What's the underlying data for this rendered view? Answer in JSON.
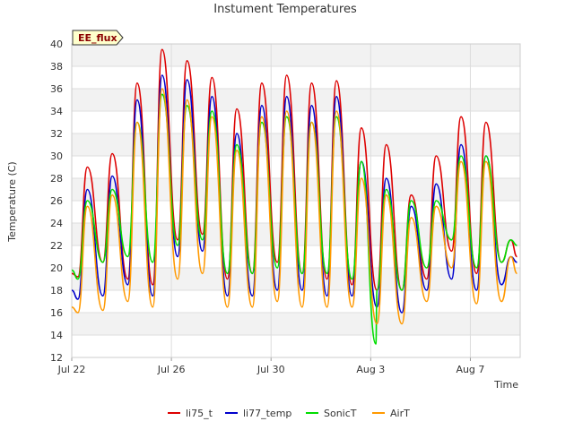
{
  "chart_data": {
    "type": "line",
    "title": "Instument Temperatures",
    "xlabel": "Time",
    "ylabel": "Temperature (C)",
    "badge": "EE_flux",
    "x_ticks": [
      {
        "day": 0,
        "label": "Jul 22"
      },
      {
        "day": 4,
        "label": "Jul 26"
      },
      {
        "day": 8,
        "label": "Jul 30"
      },
      {
        "day": 12,
        "label": "Aug 3"
      },
      {
        "day": 16,
        "label": "Aug 7"
      }
    ],
    "y_ticks": [
      12,
      14,
      16,
      18,
      20,
      22,
      24,
      26,
      28,
      30,
      32,
      34,
      36,
      38,
      40
    ],
    "xlim": [
      "Jul 22",
      "Aug 9"
    ],
    "ylim": [
      12,
      40
    ],
    "grid": true,
    "legend_position": "bottom",
    "series": [
      {
        "name": "li75_t",
        "color": "#dd0000",
        "x": [
          "Jul 22 00:00",
          "Jul 22 06:00",
          "Jul 22 15:00",
          "Jul 23 06:00",
          "Jul 23 15:00",
          "Jul 24 06:00",
          "Jul 24 15:00",
          "Jul 25 06:00",
          "Jul 25 15:00",
          "Jul 26 06:00",
          "Jul 26 15:00",
          "Jul 27 06:00",
          "Jul 27 15:00",
          "Jul 28 06:00",
          "Jul 28 15:00",
          "Jul 29 06:00",
          "Jul 29 15:00",
          "Jul 30 06:00",
          "Jul 30 15:00",
          "Jul 31 06:00",
          "Jul 31 15:00",
          "Aug 1 06:00",
          "Aug 1 15:00",
          "Aug 2 06:00",
          "Aug 2 15:00",
          "Aug 3 06:00",
          "Aug 3 15:00",
          "Aug 4 06:00",
          "Aug 4 15:00",
          "Aug 5 06:00",
          "Aug 5 15:00",
          "Aug 6 06:00",
          "Aug 6 15:00",
          "Aug 7 06:00",
          "Aug 7 15:00",
          "Aug 8 06:00",
          "Aug 8 15:00",
          "Aug 8 21:00"
        ],
        "values": [
          19.5,
          19.2,
          29,
          20.5,
          30.2,
          19,
          36.5,
          18.5,
          39.5,
          22.5,
          38.5,
          23,
          37,
          19,
          34.2,
          19.5,
          36.5,
          20.5,
          37.2,
          19.5,
          36.5,
          19,
          36.7,
          18.5,
          32.5,
          18,
          31,
          18,
          26.5,
          19,
          30,
          21.5,
          33.5,
          19.5,
          33,
          20.5,
          22.5,
          21
        ]
      },
      {
        "name": "li77_temp",
        "color": "#0000cc",
        "x": [
          "Jul 22 00:00",
          "Jul 22 06:00",
          "Jul 22 15:00",
          "Jul 23 06:00",
          "Jul 23 15:00",
          "Jul 24 06:00",
          "Jul 24 15:00",
          "Jul 25 06:00",
          "Jul 25 15:00",
          "Jul 26 06:00",
          "Jul 26 15:00",
          "Jul 27 06:00",
          "Jul 27 15:00",
          "Jul 28 06:00",
          "Jul 28 15:00",
          "Jul 29 06:00",
          "Jul 29 15:00",
          "Jul 30 06:00",
          "Jul 30 15:00",
          "Jul 31 06:00",
          "Jul 31 15:00",
          "Aug 1 06:00",
          "Aug 1 15:00",
          "Aug 2 06:00",
          "Aug 2 15:00",
          "Aug 3 06:00",
          "Aug 3 15:00",
          "Aug 4 06:00",
          "Aug 4 15:00",
          "Aug 5 06:00",
          "Aug 5 15:00",
          "Aug 6 06:00",
          "Aug 6 15:00",
          "Aug 7 06:00",
          "Aug 7 15:00",
          "Aug 8 06:00",
          "Aug 8 15:00",
          "Aug 8 21:00"
        ],
        "values": [
          18,
          17.2,
          27,
          17.5,
          28.2,
          18.5,
          35,
          17.5,
          37.2,
          21,
          36.8,
          21.5,
          35.3,
          17.5,
          32,
          17.5,
          34.5,
          18,
          35.3,
          18,
          34.5,
          17.5,
          35.3,
          17.5,
          29.5,
          16.5,
          28,
          16,
          25.5,
          18,
          27.5,
          19,
          31,
          18,
          30,
          18.5,
          21,
          20.5
        ]
      },
      {
        "name": "SonicT",
        "color": "#00dd00",
        "x": [
          "Jul 22 00:00",
          "Jul 22 06:00",
          "Jul 22 15:00",
          "Jul 23 06:00",
          "Jul 23 15:00",
          "Jul 24 06:00",
          "Jul 24 15:00",
          "Jul 25 06:00",
          "Jul 25 15:00",
          "Jul 26 06:00",
          "Jul 26 15:00",
          "Jul 27 06:00",
          "Jul 27 15:00",
          "Jul 28 06:00",
          "Jul 28 15:00",
          "Jul 29 06:00",
          "Jul 29 15:00",
          "Jul 30 06:00",
          "Jul 30 15:00",
          "Jul 31 06:00",
          "Jul 31 15:00",
          "Aug 1 06:00",
          "Aug 1 15:00",
          "Aug 2 06:00",
          "Aug 2 15:00",
          "Aug 3 05:00",
          "Aug 3 06:00",
          "Aug 3 15:00",
          "Aug 4 06:00",
          "Aug 4 15:00",
          "Aug 5 06:00",
          "Aug 5 15:00",
          "Aug 6 06:00",
          "Aug 6 15:00",
          "Aug 7 06:00",
          "Aug 7 15:00",
          "Aug 8 06:00",
          "Aug 8 15:00",
          "Aug 8 21:00"
        ],
        "values": [
          19.8,
          19,
          26,
          20.5,
          27,
          21,
          33,
          20.5,
          35.5,
          22,
          34.5,
          22.5,
          34,
          19.5,
          31,
          19.5,
          33,
          20,
          33.5,
          19.5,
          33,
          19.5,
          33.5,
          19,
          29.5,
          13.2,
          18,
          27,
          18,
          26,
          20,
          26,
          22.5,
          30,
          20,
          30,
          20.5,
          22.5,
          22
        ]
      },
      {
        "name": "AirT",
        "color": "#ff9900",
        "x": [
          "Jul 22 00:00",
          "Jul 22 06:00",
          "Jul 22 15:00",
          "Jul 23 06:00",
          "Jul 23 15:00",
          "Jul 24 06:00",
          "Jul 24 15:00",
          "Jul 25 06:00",
          "Jul 25 15:00",
          "Jul 26 06:00",
          "Jul 26 15:00",
          "Jul 27 06:00",
          "Jul 27 15:00",
          "Jul 28 06:00",
          "Jul 28 15:00",
          "Jul 29 06:00",
          "Jul 29 15:00",
          "Jul 30 06:00",
          "Jul 30 15:00",
          "Jul 31 06:00",
          "Jul 31 15:00",
          "Aug 1 06:00",
          "Aug 1 15:00",
          "Aug 2 06:00",
          "Aug 2 15:00",
          "Aug 3 06:00",
          "Aug 3 15:00",
          "Aug 4 06:00",
          "Aug 4 15:00",
          "Aug 5 06:00",
          "Aug 5 15:00",
          "Aug 6 06:00",
          "Aug 6 15:00",
          "Aug 7 06:00",
          "Aug 7 15:00",
          "Aug 8 06:00",
          "Aug 8 15:00",
          "Aug 8 21:00"
        ],
        "values": [
          16.5,
          16,
          25.5,
          16.2,
          26.5,
          17,
          33,
          16.5,
          36,
          19,
          35,
          19.5,
          33.5,
          16.5,
          30.5,
          16.5,
          33.5,
          17,
          34,
          16.5,
          33,
          16.5,
          34,
          16.5,
          28,
          15,
          26.5,
          15,
          24.5,
          17,
          25.5,
          20,
          29.5,
          16.8,
          29.5,
          17,
          21,
          19.5
        ]
      }
    ]
  }
}
